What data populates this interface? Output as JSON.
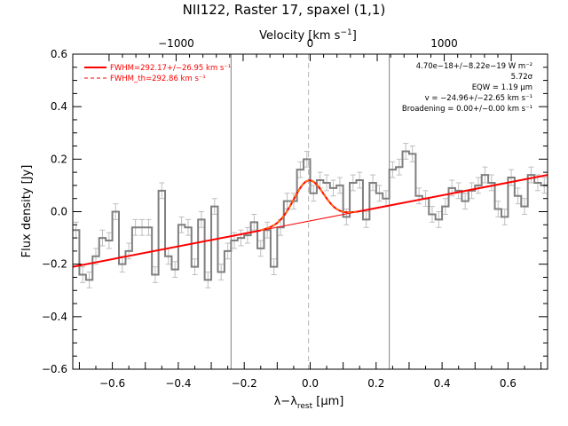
{
  "chart_data": {
    "type": "line",
    "title": "NII122, Raster 17, spaxel (1,1)",
    "xlabel": "λ−λrest [μm]",
    "ylabel": "Flux density [Jy]",
    "x2label": "Velocity [km s⁻¹]",
    "xlim": [
      -0.72,
      0.72
    ],
    "ylim": [
      -0.6,
      0.6
    ],
    "x_ticks": [
      -0.6,
      -0.4,
      -0.2,
      0.0,
      0.2,
      0.4,
      0.6
    ],
    "x_tick_labels": [
      "−0.6",
      "−0.4",
      "−0.2",
      "0.0",
      "0.2",
      "0.4",
      "0.6"
    ],
    "y_ticks": [
      -0.6,
      -0.4,
      -0.2,
      0.0,
      0.2,
      0.4,
      0.6
    ],
    "y_tick_labels": [
      "−0.6",
      "−0.4",
      "−0.2",
      "0.0",
      "0.2",
      "0.4",
      "0.6"
    ],
    "x2_ticks": [
      -1000,
      0,
      1000
    ],
    "x2_tick_labels": [
      "−1000",
      "0",
      "1000"
    ],
    "vertical_lines": [
      -0.24,
      0.24
    ],
    "center_line": -0.005,
    "legend": {
      "placement": "top-left",
      "entries": [
        {
          "label": "FWHM=292.17+/−26.95 km s⁻¹",
          "style": "solid",
          "color": "#ff0000"
        },
        {
          "label": "FWHM_th=292.86 km s⁻¹",
          "style": "dashed",
          "color": "#ff0000"
        }
      ]
    },
    "annotations": [
      "4.70e−18+/−8.22e−19 W m⁻²",
      "5.72σ",
      "EQW = 1.19 μm",
      "v = −24.96+/−22.65 km s⁻¹",
      "Broadening = 0.00+/−0.00 km s⁻¹"
    ],
    "data_step": {
      "x": [
        -0.72,
        -0.7,
        -0.68,
        -0.66,
        -0.64,
        -0.62,
        -0.6,
        -0.58,
        -0.56,
        -0.54,
        -0.52,
        -0.5,
        -0.48,
        -0.46,
        -0.44,
        -0.42,
        -0.4,
        -0.38,
        -0.36,
        -0.34,
        -0.32,
        -0.3,
        -0.28,
        -0.26,
        -0.24,
        -0.22,
        -0.2,
        -0.18,
        -0.16,
        -0.14,
        -0.12,
        -0.1,
        -0.08,
        -0.06,
        -0.04,
        -0.02,
        0.0,
        0.02,
        0.04,
        0.06,
        0.08,
        0.1,
        0.12,
        0.14,
        0.16,
        0.18,
        0.2,
        0.22,
        0.24,
        0.26,
        0.28,
        0.3,
        0.32,
        0.34,
        0.36,
        0.38,
        0.4,
        0.42,
        0.44,
        0.46,
        0.48,
        0.5,
        0.52,
        0.54,
        0.56,
        0.58,
        0.6,
        0.62,
        0.64,
        0.66,
        0.68,
        0.7
      ],
      "y": [
        -0.07,
        -0.24,
        -0.26,
        -0.17,
        -0.1,
        -0.11,
        0.0,
        -0.2,
        -0.15,
        -0.06,
        -0.06,
        -0.06,
        -0.24,
        0.08,
        -0.17,
        -0.22,
        -0.05,
        -0.06,
        -0.21,
        -0.03,
        -0.26,
        0.02,
        -0.23,
        -0.15,
        -0.11,
        -0.1,
        -0.09,
        -0.04,
        -0.14,
        -0.07,
        -0.21,
        -0.06,
        0.04,
        0.04,
        0.16,
        0.2,
        0.07,
        0.12,
        0.11,
        0.09,
        0.1,
        -0.02,
        0.11,
        0.12,
        -0.03,
        0.11,
        0.07,
        0.05,
        0.16,
        0.17,
        0.23,
        0.22,
        0.06,
        0.05,
        -0.01,
        -0.03,
        0.02,
        0.09,
        0.08,
        0.04,
        0.08,
        0.1,
        0.14,
        0.11,
        0.01,
        -0.02,
        0.13,
        0.06,
        0.02,
        0.14,
        0.11,
        0.1
      ],
      "errors": [
        0.03,
        0.03,
        0.03,
        0.03,
        0.03,
        0.03,
        0.03,
        0.03,
        0.03,
        0.03,
        0.03,
        0.03,
        0.03,
        0.03,
        0.03,
        0.03,
        0.03,
        0.03,
        0.03,
        0.03,
        0.03,
        0.03,
        0.03,
        0.03,
        0.03,
        0.03,
        0.03,
        0.03,
        0.03,
        0.03,
        0.03,
        0.03,
        0.03,
        0.03,
        0.03,
        0.03,
        0.03,
        0.03,
        0.03,
        0.03,
        0.03,
        0.03,
        0.03,
        0.03,
        0.03,
        0.03,
        0.03,
        0.03,
        0.03,
        0.03,
        0.03,
        0.03,
        0.03,
        0.03,
        0.03,
        0.03,
        0.03,
        0.03,
        0.03,
        0.03,
        0.03,
        0.03,
        0.03,
        0.03,
        0.03,
        0.03,
        0.03,
        0.03,
        0.03,
        0.03,
        0.03,
        0.03
      ]
    },
    "continuum": {
      "x": [
        -0.72,
        0.72
      ],
      "y": [
        -0.21,
        0.14
      ]
    },
    "gaussian_fit": {
      "center": -0.005,
      "sigma": 0.045,
      "amplitude": 0.155,
      "x_range": [
        -0.15,
        0.14
      ]
    },
    "colors": {
      "data": "#7f7f7f",
      "errorbars": "#bebebe",
      "fit": "#ff0000",
      "vlines": "#7f7f7f",
      "center_line": "#b4b4b4",
      "axes": "#000000"
    }
  }
}
